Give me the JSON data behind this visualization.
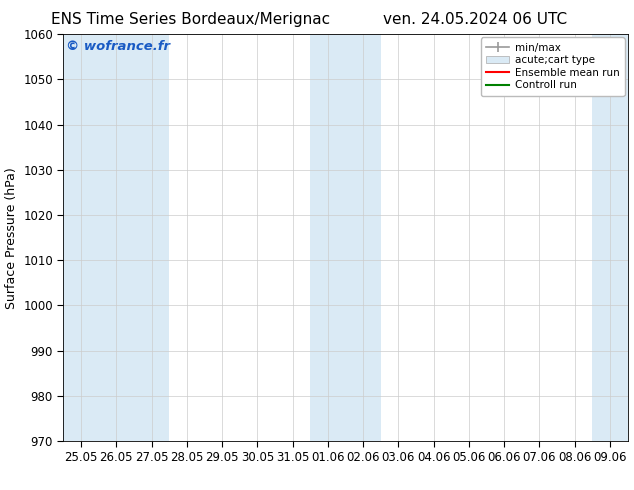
{
  "title_left": "ENS Time Series Bordeaux/Merignac",
  "title_right": "ven. 24.05.2024 06 UTC",
  "ylabel": "Surface Pressure (hPa)",
  "ylim": [
    970,
    1060
  ],
  "yticks": [
    970,
    980,
    990,
    1000,
    1010,
    1020,
    1030,
    1040,
    1050,
    1060
  ],
  "xtick_labels": [
    "25.05",
    "26.05",
    "27.05",
    "28.05",
    "29.05",
    "30.05",
    "31.05",
    "01.06",
    "02.06",
    "03.06",
    "04.06",
    "05.06",
    "06.06",
    "07.06",
    "08.06",
    "09.06"
  ],
  "shaded_x_indices": [
    0,
    1,
    2,
    7,
    8,
    15
  ],
  "band_color": "#daeaf5",
  "background_color": "#ffffff",
  "watermark_text": "© wofrance.fr",
  "watermark_color": "#1a5bc4",
  "legend_items": [
    {
      "label": "min/max",
      "color": "#999999",
      "type": "errbar"
    },
    {
      "label": "acute;cart type",
      "color": "#daeaf5",
      "type": "box"
    },
    {
      "label": "Ensemble mean run",
      "color": "red",
      "type": "line"
    },
    {
      "label": "Controll run",
      "color": "green",
      "type": "line"
    }
  ],
  "title_fontsize": 11,
  "axis_fontsize": 9,
  "tick_fontsize": 8.5
}
